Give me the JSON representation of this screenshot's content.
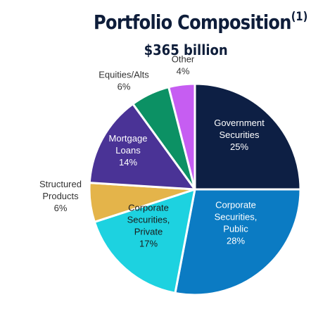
{
  "header": {
    "title": "Portfolio Composition",
    "title_footnote": "(1)",
    "subtitle": "$365 billion"
  },
  "chart_data": {
    "type": "pie",
    "title": "Portfolio Composition(1)",
    "subtitle": "$365 billion",
    "start": "12 o'clock, clockwise",
    "slices": [
      {
        "label_lines": [
          "Government",
          "Securities"
        ],
        "value": 25,
        "value_label": "25%",
        "color": "#0d1f44",
        "text_color": "#ffffff"
      },
      {
        "label_lines": [
          "Corporate",
          "Securities,",
          "Public"
        ],
        "value": 28,
        "value_label": "28%",
        "color": "#0b7bc3",
        "text_color": "#ffffff"
      },
      {
        "label_lines": [
          "Corporate",
          "Securities,",
          "Private"
        ],
        "value": 17,
        "value_label": "17%",
        "color": "#1dd2e0",
        "text_color": "#1a1a1a"
      },
      {
        "label_lines": [
          "Structured",
          "Products"
        ],
        "value": 6,
        "value_label": "6%",
        "color": "#e4b44a",
        "text_color": "#333333",
        "outside": true
      },
      {
        "label_lines": [
          "Mortgage",
          "Loans"
        ],
        "value": 14,
        "value_label": "14%",
        "color": "#4a3396",
        "text_color": "#ffffff"
      },
      {
        "label_lines": [
          "Equities/Alts"
        ],
        "value": 6,
        "value_label": "6%",
        "color": "#0c9164",
        "text_color": "#333333",
        "outside": true
      },
      {
        "label_lines": [
          "Other"
        ],
        "value": 4,
        "value_label": "4%",
        "color": "#c65df2",
        "text_color": "#333333",
        "outside": true
      }
    ]
  }
}
